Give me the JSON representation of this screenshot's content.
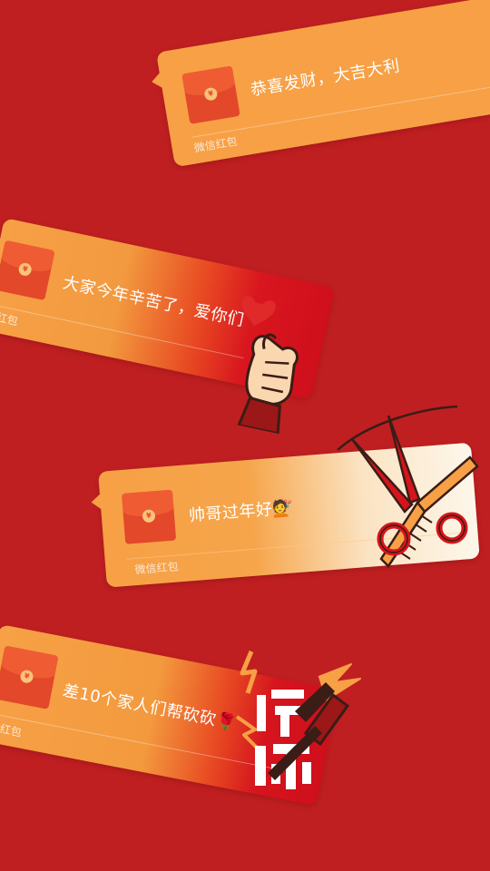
{
  "cards": [
    {
      "message": "恭喜发财，大吉大利",
      "brand": "微信红包",
      "coin": "¥"
    },
    {
      "message": "大家今年辛苦了，爱你们",
      "brand": "微信红包",
      "coin": "¥"
    },
    {
      "message": "帅哥过年好💇",
      "brand": "微信红包",
      "coin": "¥"
    },
    {
      "message": "差10个家人们帮砍砍🌹",
      "brand": "微信红包",
      "coin": "¥"
    }
  ],
  "colors": {
    "background": "#bf1f21",
    "card": "#f7a046",
    "envelope": "#e3482a"
  }
}
